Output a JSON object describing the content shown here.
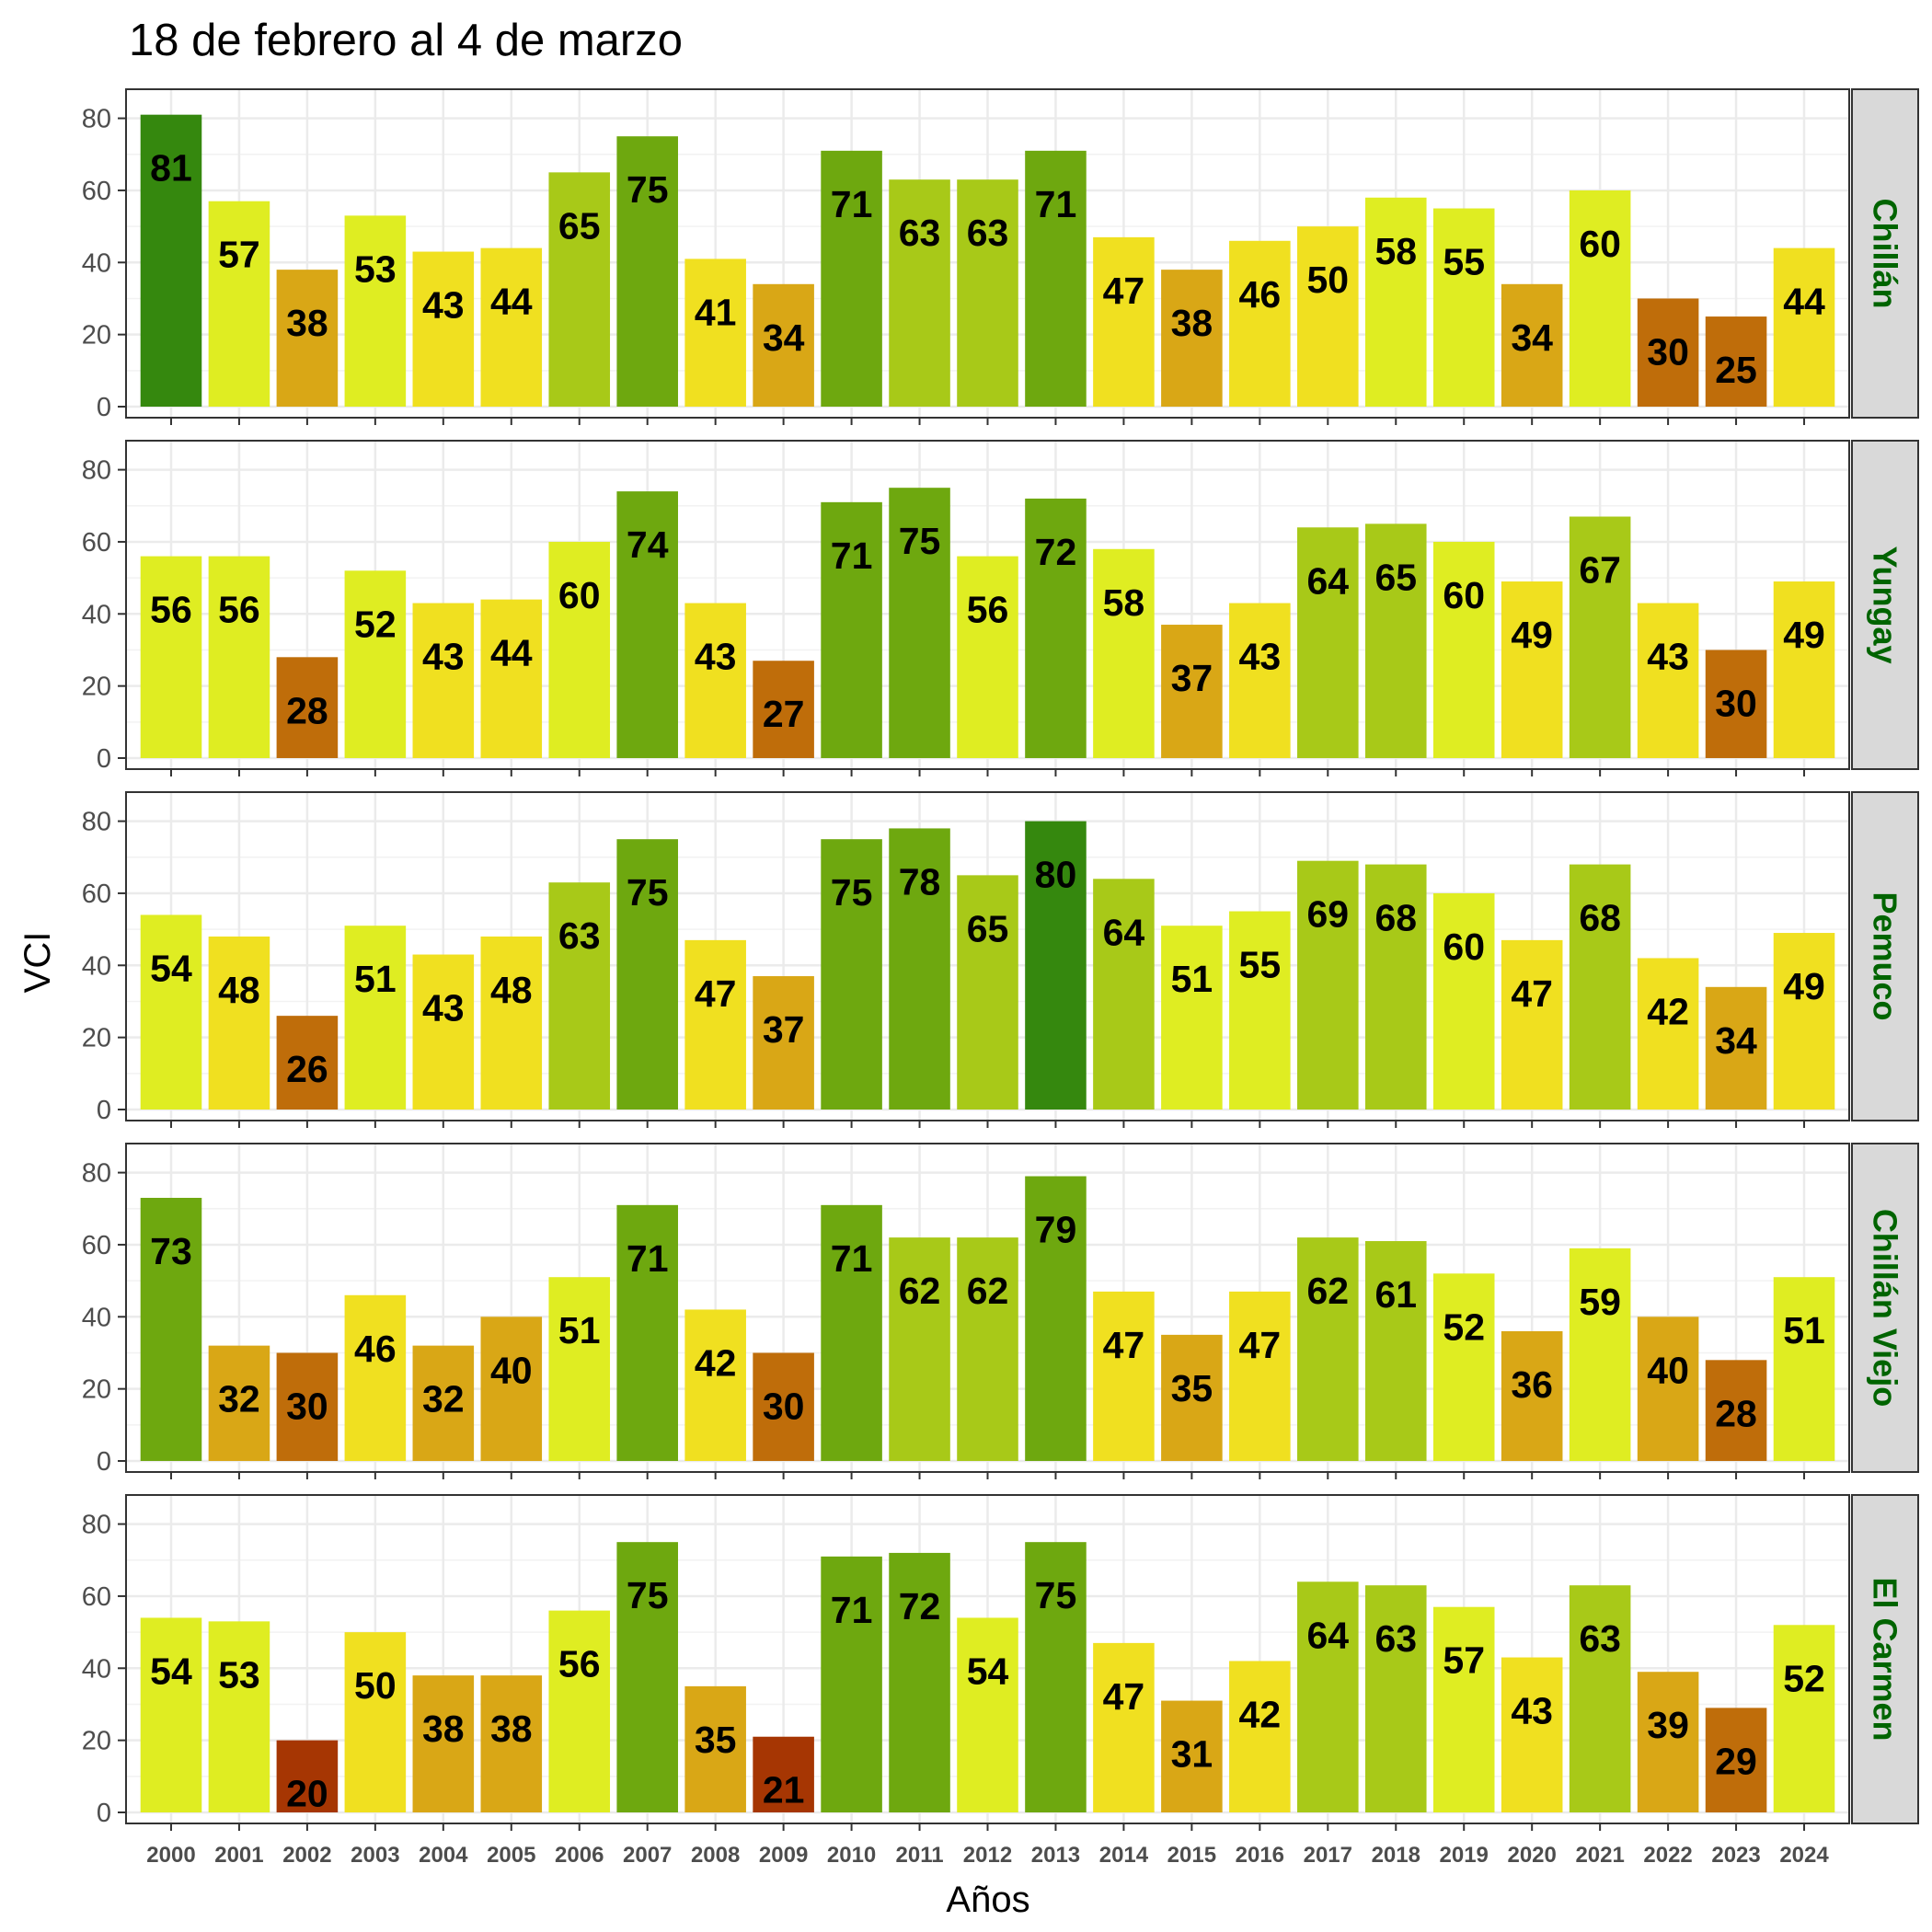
{
  "chart_data": {
    "type": "bar",
    "title": "18 de febrero al 4 de marzo",
    "xlabel": "Años",
    "ylabel": "VCI",
    "ylim": [
      0,
      85
    ],
    "yticks": [
      0,
      20,
      40,
      60,
      80
    ],
    "grid": true,
    "strip_color": "#006400",
    "categories": [
      "2000",
      "2001",
      "2002",
      "2003",
      "2004",
      "2005",
      "2006",
      "2007",
      "2008",
      "2009",
      "2010",
      "2011",
      "2012",
      "2013",
      "2014",
      "2015",
      "2016",
      "2017",
      "2018",
      "2019",
      "2020",
      "2021",
      "2022",
      "2023",
      "2024"
    ],
    "panels": [
      {
        "name": "Chillán",
        "values": [
          81,
          57,
          38,
          53,
          43,
          44,
          65,
          75,
          41,
          34,
          71,
          63,
          63,
          71,
          47,
          38,
          46,
          50,
          58,
          55,
          34,
          60,
          30,
          25,
          44
        ]
      },
      {
        "name": "Yungay",
        "values": [
          56,
          56,
          28,
          52,
          43,
          44,
          60,
          74,
          43,
          27,
          71,
          75,
          56,
          72,
          58,
          37,
          43,
          64,
          65,
          60,
          49,
          67,
          43,
          30,
          49
        ]
      },
      {
        "name": "Pemuco",
        "values": [
          54,
          48,
          26,
          51,
          43,
          48,
          63,
          75,
          47,
          37,
          75,
          78,
          65,
          80,
          64,
          51,
          55,
          69,
          68,
          60,
          47,
          68,
          42,
          34,
          49
        ]
      },
      {
        "name": "Chillán Viejo",
        "values": [
          73,
          32,
          30,
          46,
          32,
          40,
          51,
          71,
          42,
          30,
          71,
          62,
          62,
          79,
          47,
          35,
          47,
          62,
          61,
          52,
          36,
          59,
          40,
          28,
          51
        ]
      },
      {
        "name": "El Carmen",
        "values": [
          54,
          53,
          20,
          50,
          38,
          38,
          56,
          75,
          35,
          21,
          71,
          72,
          54,
          75,
          47,
          31,
          42,
          64,
          63,
          57,
          43,
          63,
          39,
          29,
          52
        ]
      }
    ],
    "color_scale": [
      {
        "min": 0,
        "color": "#a63603"
      },
      {
        "min": 25,
        "color": "#bf6d0a"
      },
      {
        "min": 31,
        "color": "#d9a716"
      },
      {
        "min": 41,
        "color": "#f0e020"
      },
      {
        "min": 51,
        "color": "#dfed22"
      },
      {
        "min": 61,
        "color": "#a8c918"
      },
      {
        "min": 71,
        "color": "#6ea80f"
      },
      {
        "min": 80,
        "color": "#35880e"
      }
    ]
  }
}
